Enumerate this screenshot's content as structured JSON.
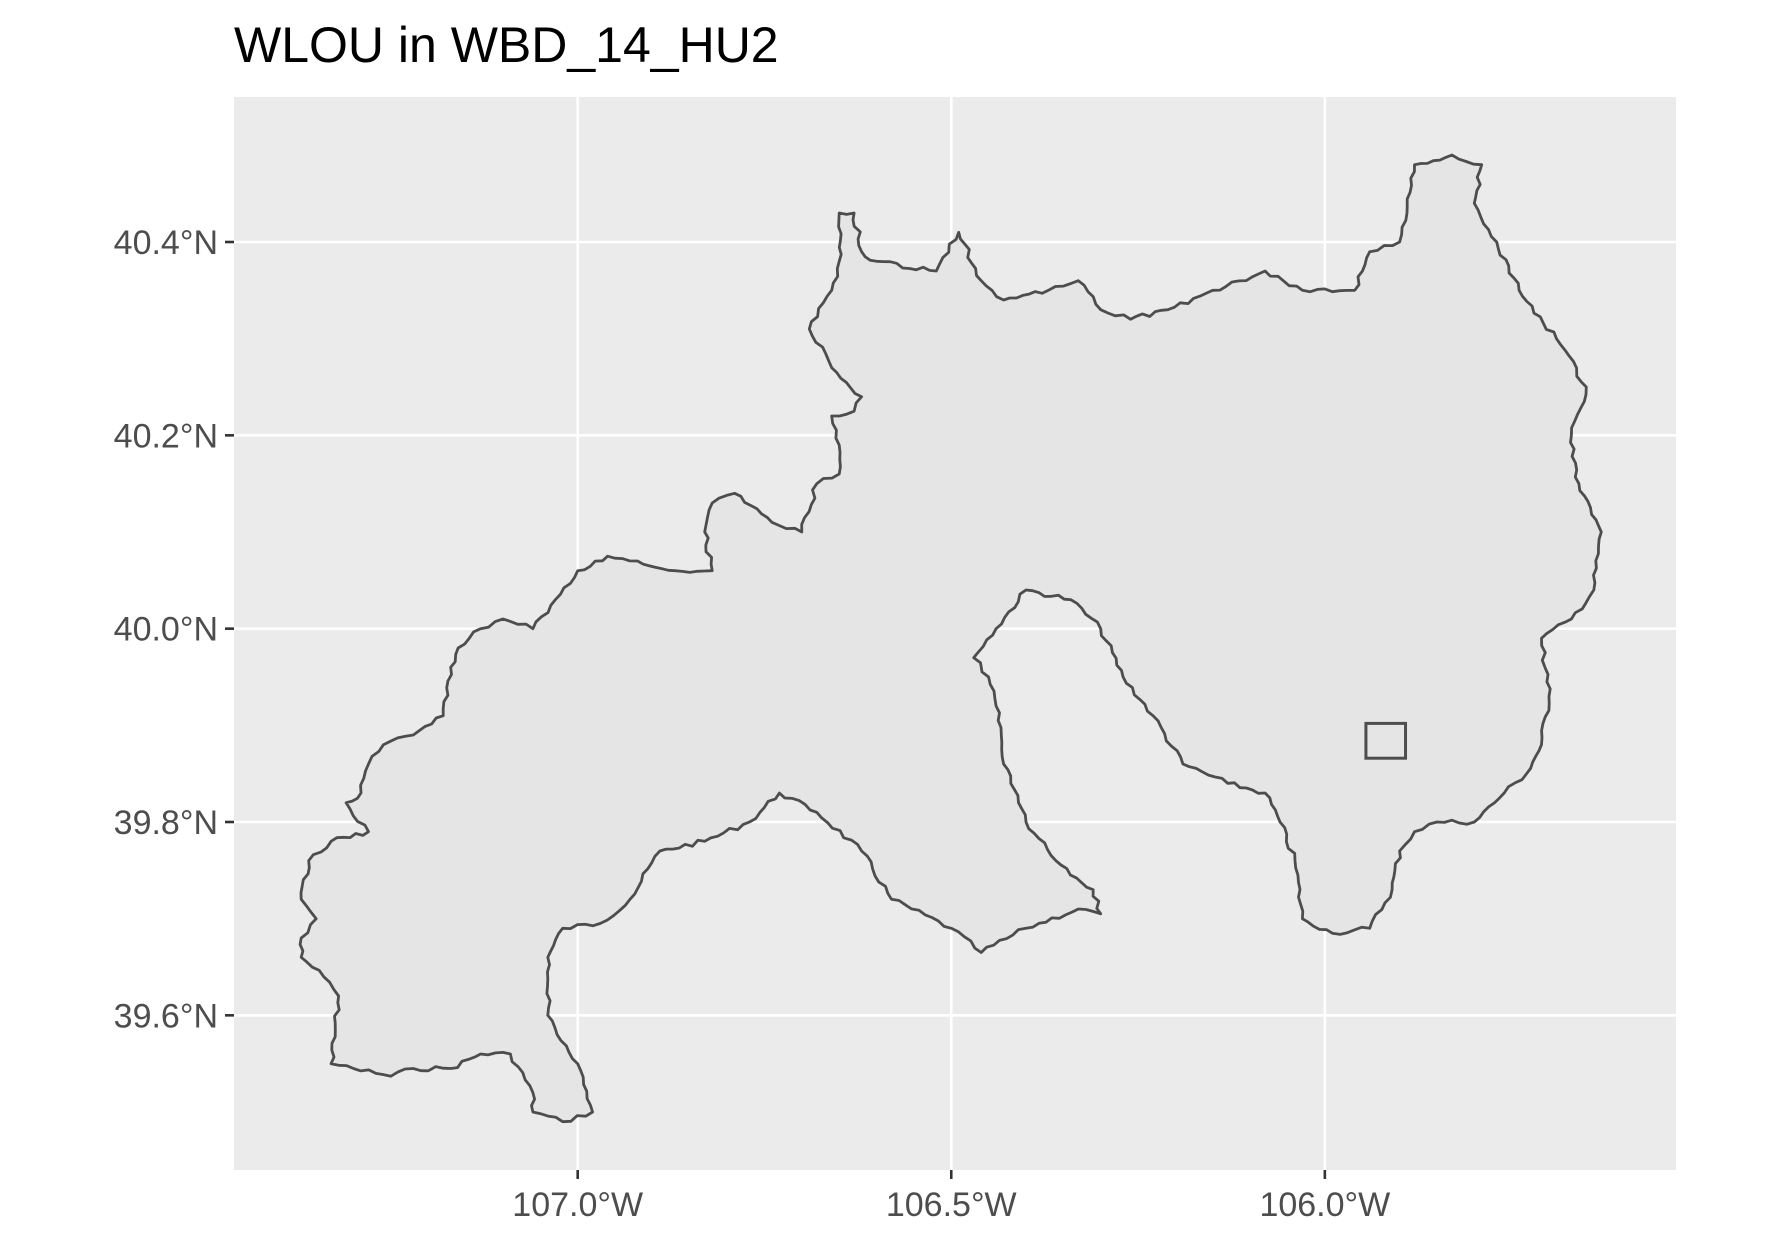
{
  "title": "WLOU in WBD_14_HU2",
  "colors": {
    "panel_background": "#ebebeb",
    "grid_lines": "#ffffff",
    "region_fill": "#e5e5e5",
    "region_outline": "#4d4d4d",
    "marker_outline": "#4d4d4d",
    "tick_label_color": "#4d4d4d",
    "title_color": "#000000"
  },
  "map": {
    "x_axis": {
      "ticks": [
        {
          "lon": -107.0,
          "label": "107.0°W"
        },
        {
          "lon": -106.5,
          "label": "106.5°W"
        },
        {
          "lon": -106.0,
          "label": "106.0°W"
        }
      ],
      "range": [
        -107.46,
        -105.53
      ]
    },
    "y_axis": {
      "ticks": [
        {
          "lat": 40.4,
          "label": "40.4°N"
        },
        {
          "lat": 40.2,
          "label": "40.2°N"
        },
        {
          "lat": 40.0,
          "label": "40.0°N"
        },
        {
          "lat": 39.8,
          "label": "39.8°N"
        },
        {
          "lat": 39.6,
          "label": "39.6°N"
        }
      ],
      "range": [
        39.44,
        40.55
      ]
    },
    "grid": true,
    "watershed_polygon": [
      [
        -107.37,
        39.66
      ],
      [
        -107.34,
        39.64
      ],
      [
        -107.32,
        39.62
      ],
      [
        -107.33,
        39.55
      ],
      [
        -107.3,
        39.545
      ],
      [
        -107.25,
        39.537
      ],
      [
        -107.22,
        39.545
      ],
      [
        -107.17,
        39.545
      ],
      [
        -107.13,
        39.56
      ],
      [
        -107.09,
        39.56
      ],
      [
        -107.06,
        39.52
      ],
      [
        -107.06,
        39.5
      ],
      [
        -107.02,
        39.49
      ],
      [
        -106.98,
        39.5
      ],
      [
        -107.0,
        39.55
      ],
      [
        -107.04,
        39.6
      ],
      [
        -107.04,
        39.66
      ],
      [
        -107.02,
        39.69
      ],
      [
        -106.97,
        39.695
      ],
      [
        -106.93,
        39.72
      ],
      [
        -106.89,
        39.77
      ],
      [
        -106.83,
        39.78
      ],
      [
        -106.77,
        39.8
      ],
      [
        -106.73,
        39.83
      ],
      [
        -106.68,
        39.81
      ],
      [
        -106.62,
        39.77
      ],
      [
        -106.58,
        39.72
      ],
      [
        -106.5,
        39.69
      ],
      [
        -106.46,
        39.665
      ],
      [
        -106.4,
        39.69
      ],
      [
        -106.33,
        39.71
      ],
      [
        -106.3,
        39.705
      ],
      [
        -106.31,
        39.73
      ],
      [
        -106.36,
        39.76
      ],
      [
        -106.4,
        39.8
      ],
      [
        -106.43,
        39.86
      ],
      [
        -106.44,
        39.92
      ],
      [
        -106.45,
        39.95
      ],
      [
        -106.47,
        39.97
      ],
      [
        -106.44,
        40.0
      ],
      [
        -106.4,
        40.04
      ],
      [
        -106.34,
        40.03
      ],
      [
        -106.3,
        40.0
      ],
      [
        -106.27,
        39.95
      ],
      [
        -106.23,
        39.91
      ],
      [
        -106.19,
        39.86
      ],
      [
        -106.13,
        39.84
      ],
      [
        -106.08,
        39.83
      ],
      [
        -106.06,
        39.8
      ],
      [
        -106.04,
        39.76
      ],
      [
        -106.03,
        39.7
      ],
      [
        -105.99,
        39.685
      ],
      [
        -105.94,
        39.69
      ],
      [
        -105.91,
        39.73
      ],
      [
        -105.9,
        39.77
      ],
      [
        -105.88,
        39.79
      ],
      [
        -105.85,
        39.8
      ],
      [
        -105.8,
        39.8
      ],
      [
        -105.76,
        39.83
      ],
      [
        -105.73,
        39.85
      ],
      [
        -105.71,
        39.88
      ],
      [
        -105.7,
        39.93
      ],
      [
        -105.71,
        39.99
      ],
      [
        -105.67,
        40.01
      ],
      [
        -105.64,
        40.04
      ],
      [
        -105.63,
        40.1
      ],
      [
        -105.66,
        40.15
      ],
      [
        -105.67,
        40.2
      ],
      [
        -105.65,
        40.25
      ],
      [
        -105.69,
        40.3
      ],
      [
        -105.74,
        40.35
      ],
      [
        -105.77,
        40.4
      ],
      [
        -105.8,
        40.44
      ],
      [
        -105.79,
        40.48
      ],
      [
        -105.83,
        40.49
      ],
      [
        -105.88,
        40.48
      ],
      [
        -105.89,
        40.43
      ],
      [
        -105.9,
        40.4
      ],
      [
        -105.94,
        40.39
      ],
      [
        -105.96,
        40.35
      ],
      [
        -106.03,
        40.35
      ],
      [
        -106.08,
        40.37
      ],
      [
        -106.15,
        40.35
      ],
      [
        -106.21,
        40.33
      ],
      [
        -106.26,
        40.32
      ],
      [
        -106.3,
        40.33
      ],
      [
        -106.33,
        40.36
      ],
      [
        -106.37,
        40.35
      ],
      [
        -106.43,
        40.34
      ],
      [
        -106.46,
        40.36
      ],
      [
        -106.49,
        40.41
      ],
      [
        -106.52,
        40.37
      ],
      [
        -106.6,
        40.38
      ],
      [
        -106.62,
        40.39
      ],
      [
        -106.63,
        40.43
      ],
      [
        -106.65,
        40.43
      ],
      [
        -106.65,
        40.38
      ],
      [
        -106.66,
        40.35
      ],
      [
        -106.69,
        40.31
      ],
      [
        -106.66,
        40.27
      ],
      [
        -106.62,
        40.24
      ],
      [
        -106.63,
        40.225
      ],
      [
        -106.66,
        40.22
      ],
      [
        -106.65,
        40.19
      ],
      [
        -106.65,
        40.16
      ],
      [
        -106.68,
        40.15
      ],
      [
        -106.7,
        40.1
      ],
      [
        -106.74,
        40.11
      ],
      [
        -106.79,
        40.14
      ],
      [
        -106.82,
        40.13
      ],
      [
        -106.83,
        40.1
      ],
      [
        -106.82,
        40.06
      ],
      [
        -106.87,
        40.06
      ],
      [
        -106.92,
        40.07
      ],
      [
        -106.96,
        40.075
      ],
      [
        -107.0,
        40.06
      ],
      [
        -107.03,
        40.03
      ],
      [
        -107.06,
        40.0
      ],
      [
        -107.1,
        40.01
      ],
      [
        -107.13,
        40.0
      ],
      [
        -107.16,
        39.98
      ],
      [
        -107.17,
        39.96
      ],
      [
        -107.18,
        39.91
      ],
      [
        -107.22,
        39.89
      ],
      [
        -107.26,
        39.88
      ],
      [
        -107.28,
        39.86
      ],
      [
        -107.29,
        39.83
      ],
      [
        -107.31,
        39.82
      ],
      [
        -107.28,
        39.79
      ],
      [
        -107.33,
        39.78
      ],
      [
        -107.36,
        39.76
      ],
      [
        -107.37,
        39.72
      ],
      [
        -107.35,
        39.7
      ],
      [
        -107.37,
        39.68
      ]
    ],
    "site_marker": {
      "lon_range": [
        -105.945,
        -105.892
      ],
      "lat_range": [
        39.866,
        39.902
      ]
    }
  }
}
